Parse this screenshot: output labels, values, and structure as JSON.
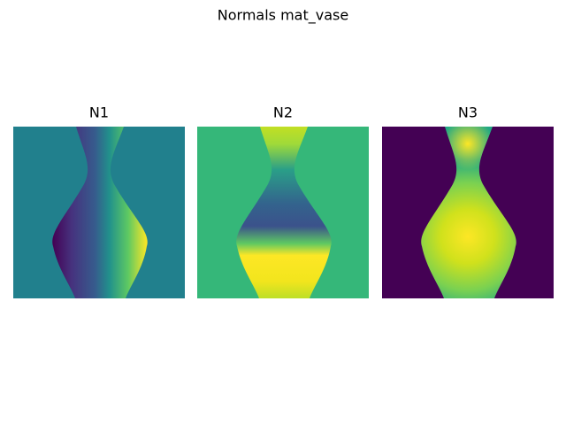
{
  "title": "Normals mat_vase",
  "panels": [
    {
      "title": "N1"
    },
    {
      "title": "N2"
    },
    {
      "title": "N3"
    }
  ]
}
